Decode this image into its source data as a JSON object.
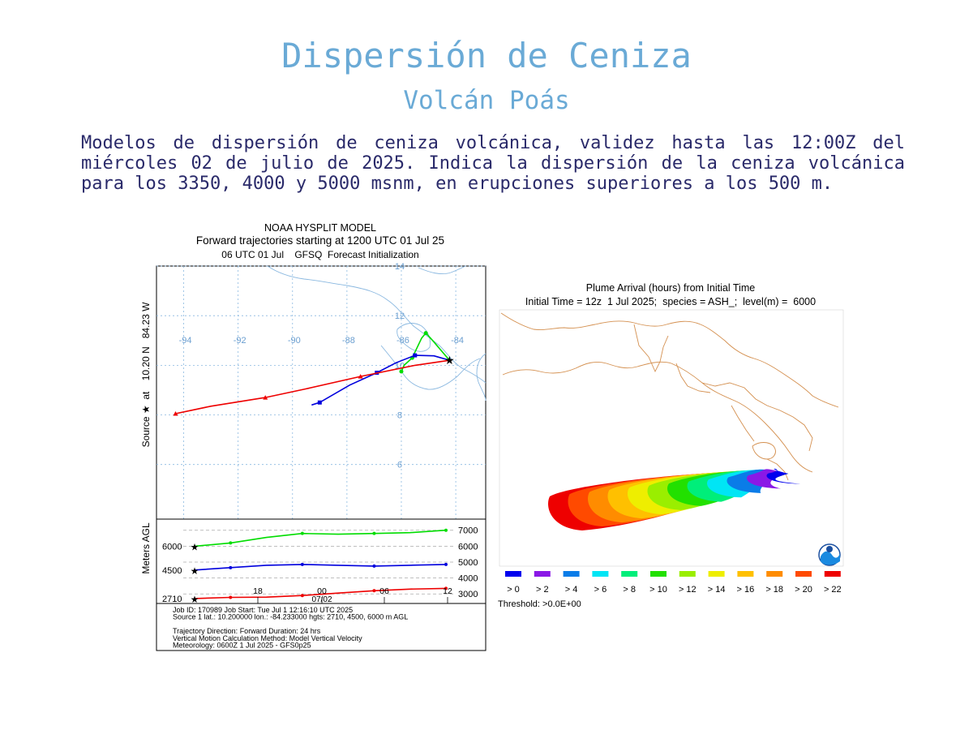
{
  "header": {
    "title": "Dispersión de Ceniza",
    "subtitle": "Volcán Poás",
    "paragraph": "Modelos de dispersión de ceniza volcánica, validez hasta las 12:00Z del miércoles 02 de julio de 2025. Indica la dispersión de la ceniza volcánica para los 3350, 4000 y 5000 msnm, en erupciones superiores a los 500 m."
  },
  "chart_data": [
    {
      "type": "line",
      "title": "NOAA HYSPLIT MODEL",
      "subtitle_1": "Forward trajectories starting at 1200 UTC 01 Jul 25",
      "subtitle_2": "06 UTC 01 Jul    GFSQ  Forecast Initialization",
      "y_side_label": "Source ★  at    10.20 N   84.23 W",
      "lon_ticks": [
        "-94",
        "-92",
        "-90",
        "-88",
        "-86",
        "-84"
      ],
      "lat_ticks": [
        "14",
        "12",
        "10",
        "8",
        "6"
      ],
      "source": {
        "lon": -84.23,
        "lat": 10.2
      },
      "series": [
        {
          "name": "6000",
          "color": "#00dd00",
          "points": [
            [
              -84.23,
              10.2
            ],
            [
              -84.85,
              11.0
            ],
            [
              -85.1,
              11.3
            ],
            [
              -85.25,
              11.1
            ],
            [
              -85.6,
              10.3
            ],
            [
              -85.9,
              10.0
            ],
            [
              -86.0,
              9.75
            ]
          ]
        },
        {
          "name": "4500",
          "color": "#0000dd",
          "points": [
            [
              -84.23,
              10.2
            ],
            [
              -84.8,
              10.38
            ],
            [
              -85.5,
              10.4
            ],
            [
              -86.2,
              10.1
            ],
            [
              -86.9,
              9.7
            ],
            [
              -87.9,
              9.2
            ],
            [
              -89.0,
              8.5
            ],
            [
              -89.3,
              8.4
            ]
          ]
        },
        {
          "name": "2710",
          "color": "#ee0000",
          "points": [
            [
              -84.23,
              10.2
            ],
            [
              -85.5,
              10.0
            ],
            [
              -87.5,
              9.55
            ],
            [
              -89.5,
              9.05
            ],
            [
              -91.0,
              8.7
            ],
            [
              -93.0,
              8.35
            ],
            [
              -94.3,
              8.05
            ]
          ]
        }
      ],
      "height_panel": {
        "ylabel": "Meters AGL",
        "left_labels": [
          "6000",
          "4500",
          "2710"
        ],
        "right_ticks": [
          "7000",
          "6000",
          "5000",
          "4000",
          "3000"
        ],
        "x_ticks": [
          "18",
          "00",
          "06",
          "12"
        ],
        "date_label": "07/02",
        "profiles": [
          {
            "name": "6000",
            "color": "#00dd00",
            "values": [
              6000,
              6200,
              6550,
              6800,
              6750,
              6800,
              6850,
              7000
            ]
          },
          {
            "name": "4500",
            "color": "#0000dd",
            "values": [
              4500,
              4650,
              4800,
              4850,
              4800,
              4750,
              4800,
              4850
            ]
          },
          {
            "name": "2710",
            "color": "#ee0000",
            "values": [
              2710,
              2780,
              2800,
              2900,
              3050,
              3200,
              3300,
              3350
            ]
          }
        ]
      },
      "info_lines": [
        "Job ID: 170989                    Job Start: Tue Jul  1 12:16:10 UTC 2025",
        "Source 1 lat.: 10.200000  lon.: -84.233000  hgts: 2710, 4500, 6000 m AGL",
        "",
        "Trajectory Direction: Forward      Duration: 24 hrs",
        "Vertical Motion Calculation Method:      Model Vertical Velocity",
        "Meteorology: 0600Z 1 Jul 2025 - GFS0p25"
      ]
    },
    {
      "type": "heatmap",
      "title": "Plume Arrival (hours) from Initial Time",
      "subtitle": "Initial Time = 12z  1 Jul 2025;  species = ASH_;  level(m) =  6000",
      "legend": [
        {
          "label": "> 0",
          "color": "#0000ee"
        },
        {
          "label": "> 2",
          "color": "#8a18e6"
        },
        {
          "label": "> 4",
          "color": "#0a7ce8"
        },
        {
          "label": "> 6",
          "color": "#00e5f5"
        },
        {
          "label": "> 8",
          "color": "#00ee7a"
        },
        {
          "label": "> 10",
          "color": "#22e000"
        },
        {
          "label": "> 12",
          "color": "#9aee00"
        },
        {
          "label": "> 14",
          "color": "#eeee00"
        },
        {
          "label": "> 16",
          "color": "#ffc000"
        },
        {
          "label": "> 18",
          "color": "#ff8c00"
        },
        {
          "label": "> 20",
          "color": "#ff4a00"
        },
        {
          "label": "> 22",
          "color": "#ee0000"
        }
      ],
      "threshold": "Threshold: >0.0E+00",
      "map_line_color": "#d49050"
    }
  ]
}
